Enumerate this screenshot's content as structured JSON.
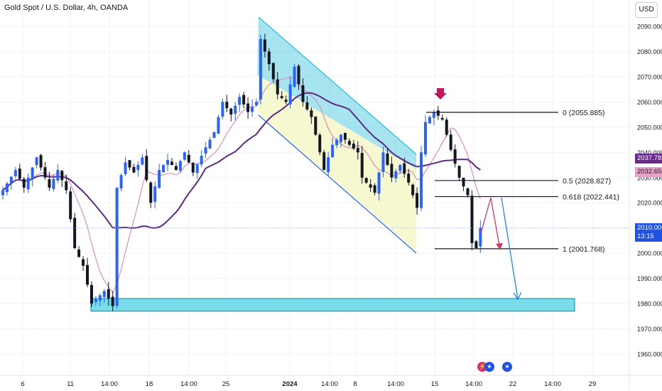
{
  "title": "Gold Spot / U.S. Dollar, 4h, OANDA",
  "currency_button": "USD",
  "current_price": "2010.005",
  "countdown": "13:15",
  "ma_long_label": "2037.783",
  "ma_short_label": "2032.656",
  "colors": {
    "up": "#2962ff",
    "down": "#131722",
    "ma_long": "#5b2a86",
    "ma_short": "#d98fbd",
    "channel_top": "#00b5d4",
    "channel_bottom": "#2962ff",
    "support_zone": "#4dd0e1",
    "arrow_pink": "#d6336c",
    "arrow_blue": "#1e88e5",
    "marker": "#c2185b"
  },
  "events": [
    {
      "icon": "flash-icon",
      "glyph": "⚡"
    },
    {
      "icon": "us-flag-icon",
      "glyph": "★"
    },
    {
      "icon": "us-flag-icon",
      "glyph": "★"
    }
  ],
  "chart_data": {
    "type": "candlestick",
    "title": "Gold Spot / U.S. Dollar, 4h, OANDA",
    "ylim": [
      1953,
      2097
    ],
    "y_ticks": [
      "2090.000",
      "2080.000",
      "2070.000",
      "2060.000",
      "2050.000",
      "2040.000",
      "2030.000",
      "2020.000",
      "2010.000",
      "2000.000",
      "1990.000",
      "1980.000",
      "1970.000",
      "1960.000"
    ],
    "x_ticks": [
      "6",
      "11",
      "14:00",
      "18",
      "14:00",
      "25",
      "2024",
      "14:00",
      "8",
      "14:00",
      "15",
      "14:00",
      "22",
      "14:00",
      "29"
    ],
    "grid": true,
    "fibonacci": [
      {
        "label": "0 (2055.885)",
        "price": 2055.885
      },
      {
        "label": "0.5 (2028.827)",
        "price": 2028.827
      },
      {
        "label": "0.618 (2022.441)",
        "price": 2022.441
      },
      {
        "label": "1 (2001.768)",
        "price": 2001.768
      }
    ],
    "support_zone": [
      1977,
      1982
    ],
    "anchors": [
      {
        "x": 0,
        "p": 2025
      },
      {
        "x": 3,
        "p": 2033
      },
      {
        "x": 5,
        "p": 2026
      },
      {
        "x": 8,
        "p": 2038
      },
      {
        "x": 11,
        "p": 2026
      },
      {
        "x": 13,
        "p": 2033
      },
      {
        "x": 15,
        "p": 2025
      },
      {
        "x": 17,
        "p": 2002
      },
      {
        "x": 19,
        "p": 1995
      },
      {
        "x": 21,
        "p": 1980
      },
      {
        "x": 24,
        "p": 1985
      },
      {
        "x": 26,
        "p": 1979
      },
      {
        "x": 27,
        "p": 2026
      },
      {
        "x": 29,
        "p": 2036
      },
      {
        "x": 31,
        "p": 2032
      },
      {
        "x": 33,
        "p": 2038
      },
      {
        "x": 35,
        "p": 2020
      },
      {
        "x": 37,
        "p": 2033
      },
      {
        "x": 39,
        "p": 2037
      },
      {
        "x": 41,
        "p": 2033
      },
      {
        "x": 43,
        "p": 2040
      },
      {
        "x": 45,
        "p": 2032
      },
      {
        "x": 48,
        "p": 2042
      },
      {
        "x": 50,
        "p": 2048
      },
      {
        "x": 52,
        "p": 2060
      },
      {
        "x": 54,
        "p": 2055
      },
      {
        "x": 56,
        "p": 2062
      },
      {
        "x": 58,
        "p": 2056
      },
      {
        "x": 60,
        "p": 2060
      },
      {
        "x": 61,
        "p": 2085
      },
      {
        "x": 63,
        "p": 2075
      },
      {
        "x": 65,
        "p": 2063
      },
      {
        "x": 67,
        "p": 2060
      },
      {
        "x": 69,
        "p": 2074
      },
      {
        "x": 71,
        "p": 2060
      },
      {
        "x": 73,
        "p": 2054
      },
      {
        "x": 75,
        "p": 2040
      },
      {
        "x": 76,
        "p": 2033
      },
      {
        "x": 78,
        "p": 2043
      },
      {
        "x": 80,
        "p": 2047
      },
      {
        "x": 82,
        "p": 2043
      },
      {
        "x": 84,
        "p": 2040
      },
      {
        "x": 85,
        "p": 2030
      },
      {
        "x": 86,
        "p": 2028
      },
      {
        "x": 88,
        "p": 2024
      },
      {
        "x": 90,
        "p": 2040
      },
      {
        "x": 92,
        "p": 2030
      },
      {
        "x": 94,
        "p": 2035
      },
      {
        "x": 96,
        "p": 2028
      },
      {
        "x": 98,
        "p": 2018
      },
      {
        "x": 99,
        "p": 2040
      },
      {
        "x": 100,
        "p": 2052
      },
      {
        "x": 102,
        "p": 2056
      },
      {
        "x": 104,
        "p": 2053
      },
      {
        "x": 106,
        "p": 2041
      },
      {
        "x": 108,
        "p": 2030
      },
      {
        "x": 110,
        "p": 2023
      },
      {
        "x": 111,
        "p": 2004
      },
      {
        "x": 112,
        "p": 2002
      },
      {
        "x": 113,
        "p": 2010
      }
    ]
  }
}
